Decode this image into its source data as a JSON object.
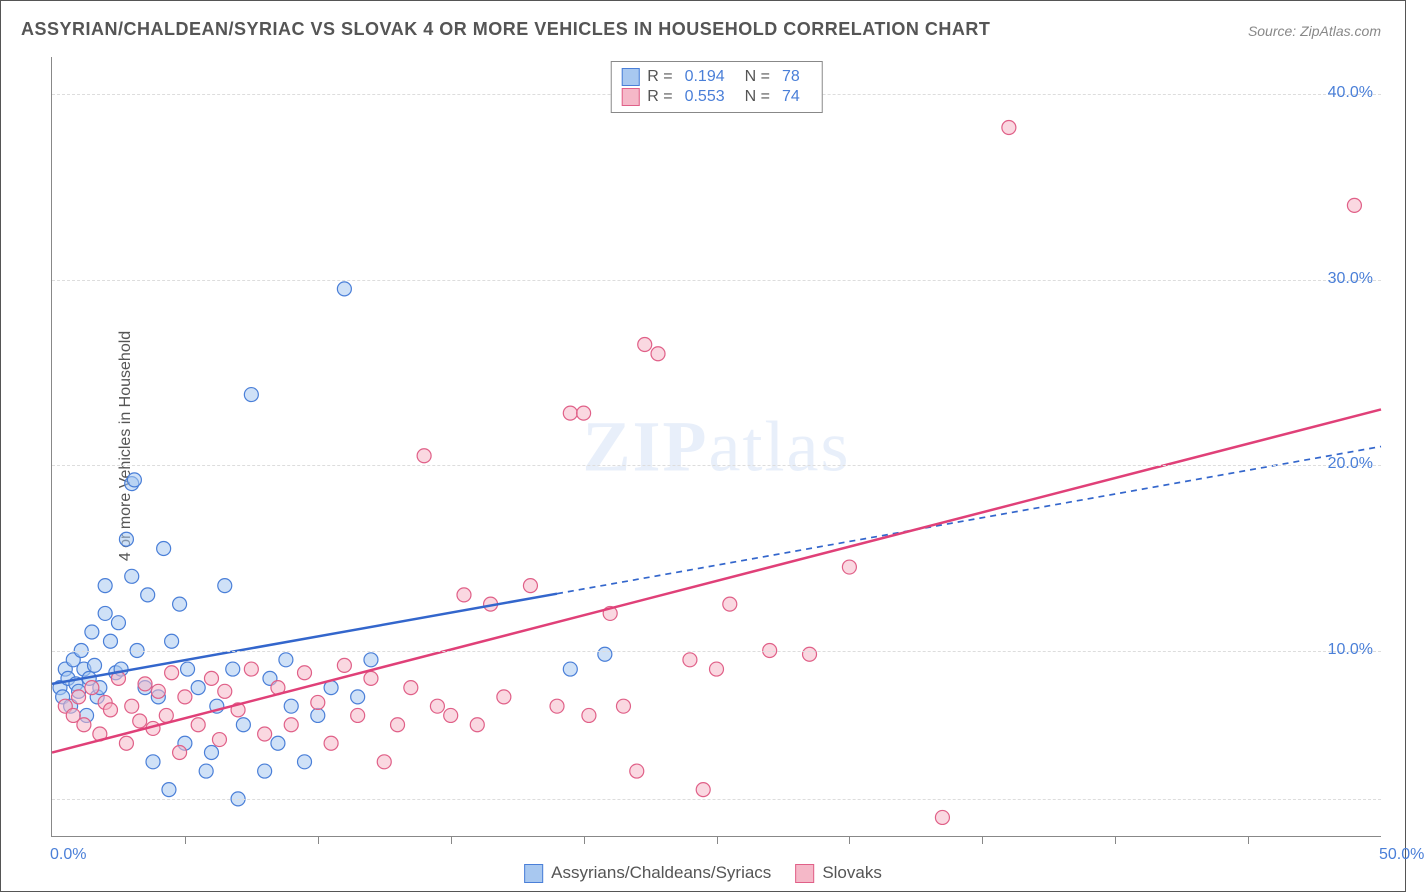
{
  "title": "ASSYRIAN/CHALDEAN/SYRIAC VS SLOVAK 4 OR MORE VEHICLES IN HOUSEHOLD CORRELATION CHART",
  "source": "Source: ZipAtlas.com",
  "ylabel": "4 or more Vehicles in Household",
  "watermark_a": "ZIP",
  "watermark_b": "atlas",
  "chart": {
    "type": "scatter",
    "xlim": [
      0,
      50
    ],
    "ylim": [
      0,
      42
    ],
    "x_tick_labels": {
      "0": "0.0%",
      "50": "50.0%"
    },
    "y_tick_labels": {
      "10": "10.0%",
      "20": "20.0%",
      "30": "30.0%",
      "40": "40.0%"
    },
    "x_minor_ticks": [
      5,
      10,
      15,
      20,
      25,
      30,
      35,
      40,
      45
    ],
    "gridlines_y": [
      2,
      10,
      20,
      30,
      40
    ],
    "background_color": "#ffffff",
    "grid_color": "#dddddd",
    "marker_radius": 7,
    "marker_stroke_width": 1.2,
    "series": [
      {
        "name": "Assyrians/Chaldeans/Syriacs",
        "short": "blue",
        "fill": "#a8c8f0",
        "stroke": "#4a7fd8",
        "fill_opacity": 0.55,
        "R": "0.194",
        "N": "78",
        "trend": {
          "x1": 0,
          "y1": 8.2,
          "x2": 50,
          "y2": 21.0,
          "solid_until_x": 19,
          "color": "#3366cc",
          "width": 2.5,
          "dash": "6,5"
        },
        "points": [
          [
            0.3,
            8.0
          ],
          [
            0.4,
            7.5
          ],
          [
            0.5,
            9.0
          ],
          [
            0.6,
            8.5
          ],
          [
            0.7,
            7.0
          ],
          [
            0.8,
            9.5
          ],
          [
            0.9,
            8.2
          ],
          [
            1.0,
            7.8
          ],
          [
            1.1,
            10.0
          ],
          [
            1.2,
            9.0
          ],
          [
            1.3,
            6.5
          ],
          [
            1.4,
            8.5
          ],
          [
            1.5,
            11.0
          ],
          [
            1.6,
            9.2
          ],
          [
            1.7,
            7.5
          ],
          [
            1.8,
            8.0
          ],
          [
            2.0,
            12.0
          ],
          [
            2.0,
            13.5
          ],
          [
            2.2,
            10.5
          ],
          [
            2.4,
            8.8
          ],
          [
            2.5,
            11.5
          ],
          [
            2.6,
            9.0
          ],
          [
            2.8,
            16.0
          ],
          [
            3.0,
            14.0
          ],
          [
            3.0,
            19.0
          ],
          [
            3.1,
            19.2
          ],
          [
            3.2,
            10.0
          ],
          [
            3.5,
            8.0
          ],
          [
            3.6,
            13.0
          ],
          [
            3.8,
            4.0
          ],
          [
            4.0,
            7.5
          ],
          [
            4.2,
            15.5
          ],
          [
            4.4,
            2.5
          ],
          [
            4.5,
            10.5
          ],
          [
            4.8,
            12.5
          ],
          [
            5.0,
            5.0
          ],
          [
            5.1,
            9.0
          ],
          [
            5.5,
            8.0
          ],
          [
            5.8,
            3.5
          ],
          [
            6.0,
            4.5
          ],
          [
            6.2,
            7.0
          ],
          [
            6.5,
            13.5
          ],
          [
            6.8,
            9.0
          ],
          [
            7.0,
            2.0
          ],
          [
            7.2,
            6.0
          ],
          [
            7.5,
            23.8
          ],
          [
            8.0,
            3.5
          ],
          [
            8.2,
            8.5
          ],
          [
            8.5,
            5.0
          ],
          [
            8.8,
            9.5
          ],
          [
            9.0,
            7.0
          ],
          [
            9.5,
            4.0
          ],
          [
            10.0,
            6.5
          ],
          [
            10.5,
            8.0
          ],
          [
            11.0,
            29.5
          ],
          [
            11.5,
            7.5
          ],
          [
            12.0,
            9.5
          ],
          [
            19.5,
            9.0
          ],
          [
            20.8,
            9.8
          ]
        ]
      },
      {
        "name": "Slovaks",
        "short": "pink",
        "fill": "#f5b8c8",
        "stroke": "#e06088",
        "fill_opacity": 0.55,
        "R": "0.553",
        "N": "74",
        "trend": {
          "x1": 0,
          "y1": 4.5,
          "x2": 50,
          "y2": 23.0,
          "solid_until_x": 50,
          "color": "#e04078",
          "width": 2.5,
          "dash": null
        },
        "points": [
          [
            0.5,
            7.0
          ],
          [
            0.8,
            6.5
          ],
          [
            1.0,
            7.5
          ],
          [
            1.2,
            6.0
          ],
          [
            1.5,
            8.0
          ],
          [
            1.8,
            5.5
          ],
          [
            2.0,
            7.2
          ],
          [
            2.2,
            6.8
          ],
          [
            2.5,
            8.5
          ],
          [
            2.8,
            5.0
          ],
          [
            3.0,
            7.0
          ],
          [
            3.3,
            6.2
          ],
          [
            3.5,
            8.2
          ],
          [
            3.8,
            5.8
          ],
          [
            4.0,
            7.8
          ],
          [
            4.3,
            6.5
          ],
          [
            4.5,
            8.8
          ],
          [
            4.8,
            4.5
          ],
          [
            5.0,
            7.5
          ],
          [
            5.5,
            6.0
          ],
          [
            6.0,
            8.5
          ],
          [
            6.3,
            5.2
          ],
          [
            6.5,
            7.8
          ],
          [
            7.0,
            6.8
          ],
          [
            7.5,
            9.0
          ],
          [
            8.0,
            5.5
          ],
          [
            8.5,
            8.0
          ],
          [
            9.0,
            6.0
          ],
          [
            9.5,
            8.8
          ],
          [
            10.0,
            7.2
          ],
          [
            10.5,
            5.0
          ],
          [
            11.0,
            9.2
          ],
          [
            11.5,
            6.5
          ],
          [
            12.0,
            8.5
          ],
          [
            12.5,
            4.0
          ],
          [
            13.0,
            6.0
          ],
          [
            13.5,
            8.0
          ],
          [
            14.0,
            20.5
          ],
          [
            14.5,
            7.0
          ],
          [
            15.0,
            6.5
          ],
          [
            15.5,
            13.0
          ],
          [
            16.0,
            6.0
          ],
          [
            16.5,
            12.5
          ],
          [
            17.0,
            7.5
          ],
          [
            18.0,
            13.5
          ],
          [
            19.0,
            7.0
          ],
          [
            19.5,
            22.8
          ],
          [
            20.0,
            22.8
          ],
          [
            20.2,
            6.5
          ],
          [
            21.0,
            12.0
          ],
          [
            21.5,
            7.0
          ],
          [
            22.0,
            3.5
          ],
          [
            22.3,
            26.5
          ],
          [
            22.8,
            26.0
          ],
          [
            24.0,
            9.5
          ],
          [
            24.5,
            2.5
          ],
          [
            25.0,
            9.0
          ],
          [
            25.5,
            12.5
          ],
          [
            27.0,
            10.0
          ],
          [
            28.5,
            9.8
          ],
          [
            30.0,
            14.5
          ],
          [
            33.5,
            1.0
          ],
          [
            36.0,
            38.2
          ],
          [
            49.0,
            34.0
          ]
        ]
      }
    ]
  },
  "legend_top": {
    "r_label": "R =",
    "n_label": "N ="
  },
  "legend_bottom": {
    "items": [
      "Assyrians/Chaldeans/Syriacs",
      "Slovaks"
    ]
  }
}
